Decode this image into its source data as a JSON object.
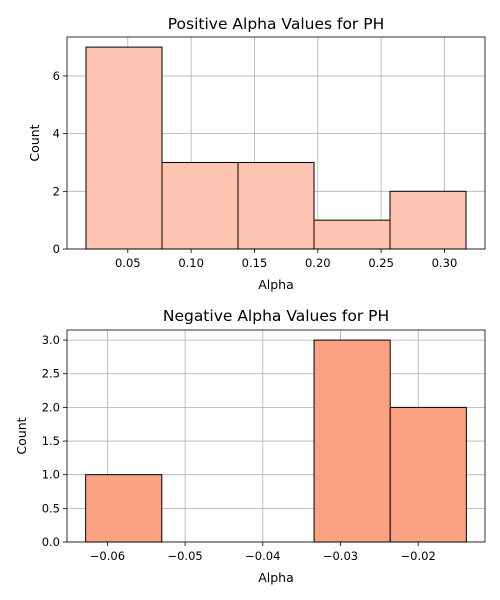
{
  "chart_data": [
    {
      "type": "bar",
      "title": "Positive Alpha Values for PH",
      "xlabel": "Alpha",
      "ylabel": "Count",
      "bar_color": "#fcc4b1",
      "bins": [
        {
          "x0": 0.017,
          "x1": 0.077,
          "count": 7
        },
        {
          "x0": 0.077,
          "x1": 0.137,
          "count": 3
        },
        {
          "x0": 0.137,
          "x1": 0.197,
          "count": 3
        },
        {
          "x0": 0.197,
          "x1": 0.257,
          "count": 1
        },
        {
          "x0": 0.257,
          "x1": 0.317,
          "count": 2
        }
      ],
      "xlim": [
        0.002,
        0.332
      ],
      "ylim": [
        0,
        7.35
      ],
      "xticks": [
        {
          "value": 0.05,
          "label": "0.05"
        },
        {
          "value": 0.1,
          "label": "0.10"
        },
        {
          "value": 0.15,
          "label": "0.15"
        },
        {
          "value": 0.2,
          "label": "0.20"
        },
        {
          "value": 0.25,
          "label": "0.25"
        },
        {
          "value": 0.3,
          "label": "0.30"
        }
      ],
      "yticks": [
        {
          "value": 0,
          "label": "0"
        },
        {
          "value": 2,
          "label": "2"
        },
        {
          "value": 4,
          "label": "4"
        },
        {
          "value": 6,
          "label": "6"
        }
      ],
      "grid": true
    },
    {
      "type": "bar",
      "title": "Negative Alpha Values for PH",
      "xlabel": "Alpha",
      "ylabel": "Count",
      "bar_color": "#fca282",
      "bins": [
        {
          "x0": -0.0628,
          "x1": -0.053,
          "count": 1
        },
        {
          "x0": -0.053,
          "x1": -0.0432,
          "count": 0
        },
        {
          "x0": -0.0432,
          "x1": -0.0334,
          "count": 0
        },
        {
          "x0": -0.0334,
          "x1": -0.0236,
          "count": 3
        },
        {
          "x0": -0.0236,
          "x1": -0.0138,
          "count": 2
        }
      ],
      "xlim": [
        -0.0652,
        -0.0114
      ],
      "ylim": [
        0,
        3.15
      ],
      "xticks": [
        {
          "value": -0.06,
          "label": "−0.06"
        },
        {
          "value": -0.05,
          "label": "−0.05"
        },
        {
          "value": -0.04,
          "label": "−0.04"
        },
        {
          "value": -0.03,
          "label": "−0.03"
        },
        {
          "value": -0.02,
          "label": "−0.02"
        }
      ],
      "yticks": [
        {
          "value": 0,
          "label": "0.0"
        },
        {
          "value": 0.5,
          "label": "0.5"
        },
        {
          "value": 1.0,
          "label": "1.0"
        },
        {
          "value": 1.5,
          "label": "1.5"
        },
        {
          "value": 2.0,
          "label": "2.0"
        },
        {
          "value": 2.5,
          "label": "2.5"
        },
        {
          "value": 3.0,
          "label": "3.0"
        }
      ],
      "grid": true
    }
  ]
}
